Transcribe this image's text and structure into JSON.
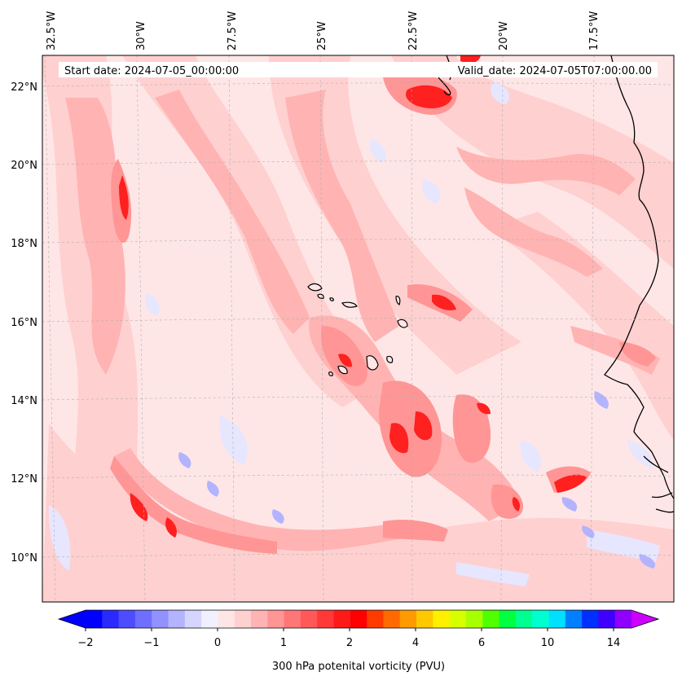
{
  "map": {
    "start_label": "Start date: 2024-07-05_00:00:00",
    "valid_label": "Valid_date: 2024-07-05T07:00:00.00",
    "lon_labels": [
      "32.5°W",
      "30°W",
      "27.5°W",
      "25°W",
      "22.5°W",
      "20°W",
      "17.5°W"
    ],
    "lat_labels": [
      "22°N",
      "20°N",
      "18°N",
      "16°N",
      "14°N",
      "12°N",
      "10°N"
    ],
    "colorbar": {
      "title": "300 hPa potenital vorticity (PVU)",
      "tick_labels": [
        "−2",
        "−1",
        "0",
        "1",
        "2",
        "4",
        "6",
        "10",
        "14"
      ],
      "colors": [
        "#0000ff",
        "#2a2aff",
        "#4d4dff",
        "#6f6fff",
        "#9191ff",
        "#b3b3ff",
        "#d5d5ff",
        "#f0f0ff",
        "#ffe6e6",
        "#ffd0d0",
        "#ffb3b3",
        "#ff9595",
        "#ff7676",
        "#ff5858",
        "#ff3838",
        "#ff1a1a",
        "#ff0000",
        "#ff3a00",
        "#ff6a00",
        "#ff9a00",
        "#ffc800",
        "#fff000",
        "#d8ff00",
        "#a8ff00",
        "#50ff00",
        "#00ff40",
        "#00ff90",
        "#00ffd0",
        "#00e0ff",
        "#0080ff",
        "#0030ff",
        "#4000ff",
        "#9000ff"
      ],
      "under_color": "#0000ff",
      "over_color": "#cc00ff"
    },
    "colors": {
      "land": "#ffe6e6",
      "light_pink": "#ffd0d0",
      "pink": "#ffb3b3",
      "salmon": "#ff9595",
      "red": "#ff5858",
      "deep_red": "#ff2020",
      "pale_blue": "#e6e6ff",
      "blue": "#b3b3ff"
    }
  }
}
